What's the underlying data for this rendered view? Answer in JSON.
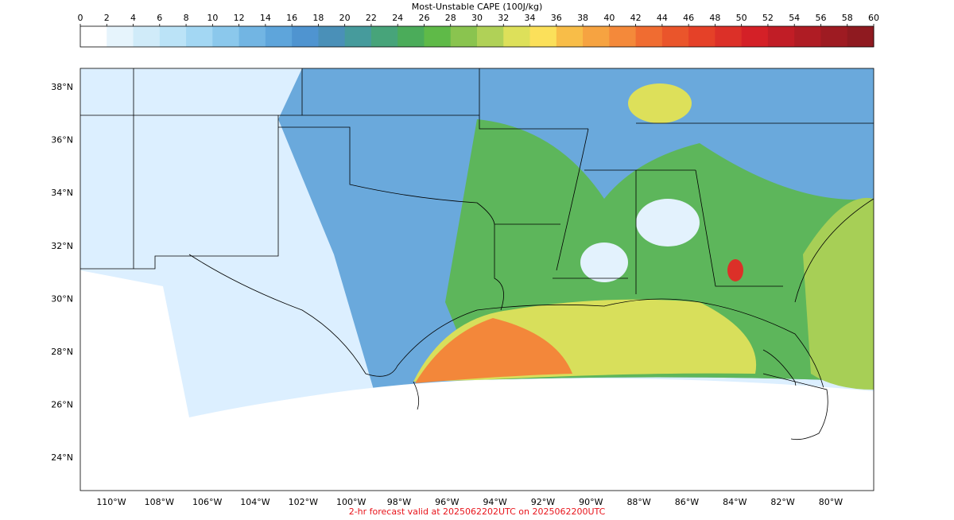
{
  "colorbar": {
    "title": "Most-Unstable CAPE (100J/kg)",
    "ticks": [
      0,
      2,
      4,
      6,
      8,
      10,
      12,
      14,
      16,
      18,
      20,
      22,
      24,
      26,
      28,
      30,
      32,
      34,
      36,
      38,
      40,
      42,
      44,
      46,
      48,
      50,
      52,
      54,
      56,
      58,
      60
    ],
    "colors": [
      "#ffffff",
      "#e6f4fc",
      "#d0ebf9",
      "#bbe3f7",
      "#a3d7f3",
      "#8bc8ec",
      "#72b5e3",
      "#5ea5db",
      "#4f94d0",
      "#4a90b8",
      "#469b9c",
      "#47a47a",
      "#4bac5a",
      "#5fba48",
      "#8ac44f",
      "#b0d157",
      "#dde05a",
      "#fbe05a",
      "#f8bd48",
      "#f6a341",
      "#f4893a",
      "#f06c31",
      "#ea552b",
      "#e54128",
      "#dc3028",
      "#d42027",
      "#c11d26",
      "#af1c24",
      "#9e1b22",
      "#8f1a20"
    ]
  },
  "map": {
    "lat_labels": [
      "38°N",
      "36°N",
      "34°N",
      "32°N",
      "30°N",
      "28°N",
      "26°N",
      "24°N"
    ],
    "lon_labels": [
      "110°W",
      "108°W",
      "106°W",
      "104°W",
      "102°W",
      "100°W",
      "98°W",
      "96°W",
      "94°W",
      "92°W",
      "90°W",
      "88°W",
      "86°W",
      "84°W",
      "82°W",
      "80°W"
    ]
  },
  "footer": "2-hr forecast valid at 2025062202UTC on 2025062200UTC"
}
